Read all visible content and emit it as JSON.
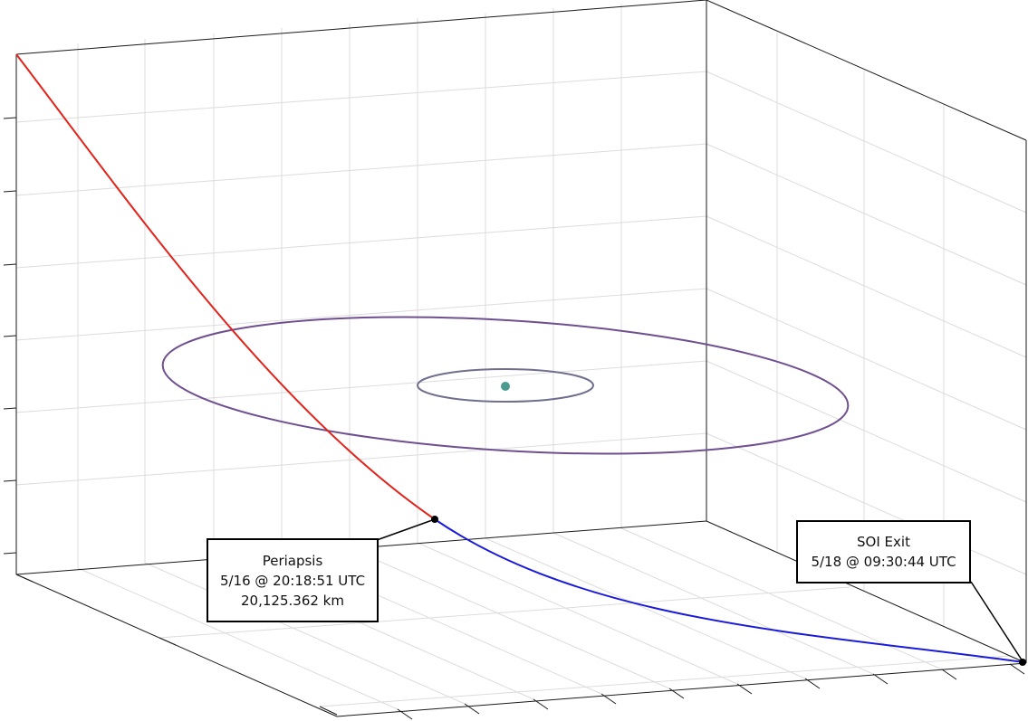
{
  "colors": {
    "background": "#ffffff",
    "grid": "#dcdcdc",
    "axes": "#1a1a1a",
    "inbound_trajectory": "#e2231a",
    "outbound_trajectory": "#1a1adc",
    "outer_orbit": "#6f4f8f",
    "inner_orbit": "#6e6e8e",
    "central_body": "#4a9a90",
    "event_marker": "#000000"
  },
  "annotations": {
    "periapsis": {
      "title": "Periapsis",
      "time": "5/16 @ 20:18:51 UTC",
      "altitude": "20,125.362 km"
    },
    "soi_exit": {
      "title": "SOI Exit",
      "time": "5/18 @ 09:30:44 UTC"
    }
  }
}
